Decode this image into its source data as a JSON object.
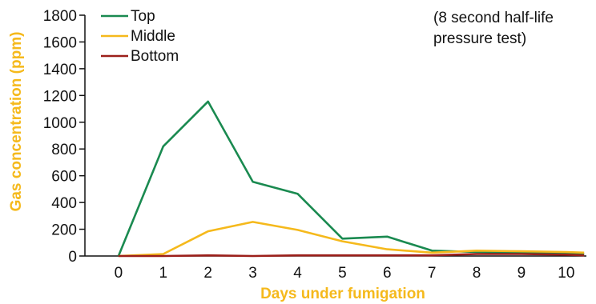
{
  "chart_data": {
    "type": "line",
    "xlabel": "Days under fumigation",
    "ylabel": "Gas concentration (ppm)",
    "annotation": [
      "(8 second half-life",
      "pressure test)"
    ],
    "x": [
      0,
      1,
      2,
      3,
      4,
      5,
      6,
      7,
      8,
      9,
      10,
      10.4
    ],
    "xticks": [
      0,
      1,
      2,
      3,
      4,
      5,
      6,
      7,
      8,
      9,
      10
    ],
    "xlim": [
      -0.75,
      10.45
    ],
    "yticks": [
      0,
      200,
      400,
      600,
      800,
      1000,
      1200,
      1400,
      1600,
      1800
    ],
    "ylim": [
      0,
      1800
    ],
    "grid": false,
    "legend_position": "top-left",
    "series": [
      {
        "name": "Top",
        "color": "#1a8a50",
        "values": [
          0,
          820,
          1155,
          555,
          465,
          130,
          145,
          40,
          30,
          25,
          20,
          15
        ]
      },
      {
        "name": "Middle",
        "color": "#f5b91c",
        "values": [
          0,
          15,
          185,
          255,
          195,
          110,
          50,
          25,
          40,
          35,
          30,
          25
        ]
      },
      {
        "name": "Bottom",
        "color": "#9c1f1a",
        "values": [
          0,
          0,
          5,
          0,
          5,
          5,
          5,
          5,
          15,
          15,
          10,
          5
        ]
      }
    ]
  }
}
